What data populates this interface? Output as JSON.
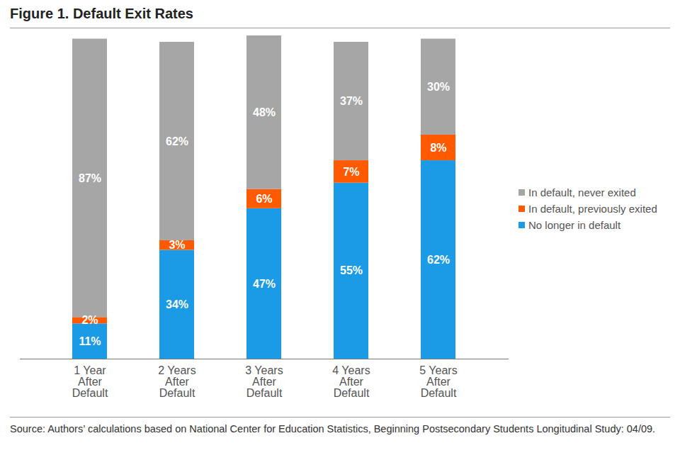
{
  "chart_data": {
    "type": "bar",
    "title": "Figure 1. Default Exit Rates",
    "caption": "Source: Authors’ calculations based on National Center for Education Statistics, Beginning Postsecondary Students Longitudinal Study: 04/09.",
    "categories": [
      "1 Year After Default",
      "2 Years After Default",
      "3 Years After Default",
      "4 Years After Default",
      "5 Years After Default"
    ],
    "series": [
      {
        "name": "No longer in default",
        "color": "#1b9be6",
        "values": [
          11,
          34,
          47,
          55,
          62
        ],
        "value_labels": [
          "11%",
          "34%",
          "47%",
          "55%",
          "62%"
        ]
      },
      {
        "name": "In default, previously exited",
        "color": "#ff5a00",
        "values": [
          2,
          3,
          6,
          7,
          8
        ],
        "value_labels": [
          "2%",
          "3%",
          "6%",
          "7%",
          "8%"
        ]
      },
      {
        "name": "In default, never exited",
        "color": "#a6a6a6",
        "values": [
          87,
          62,
          48,
          37,
          30
        ],
        "value_labels": [
          "87%",
          "62%",
          "48%",
          "37%",
          "30%"
        ]
      }
    ],
    "stacked": true,
    "data_labels": true,
    "legend": "right",
    "tick_labels": "x",
    "grid": false,
    "ylim": [
      0,
      101
    ],
    "yticks": []
  }
}
